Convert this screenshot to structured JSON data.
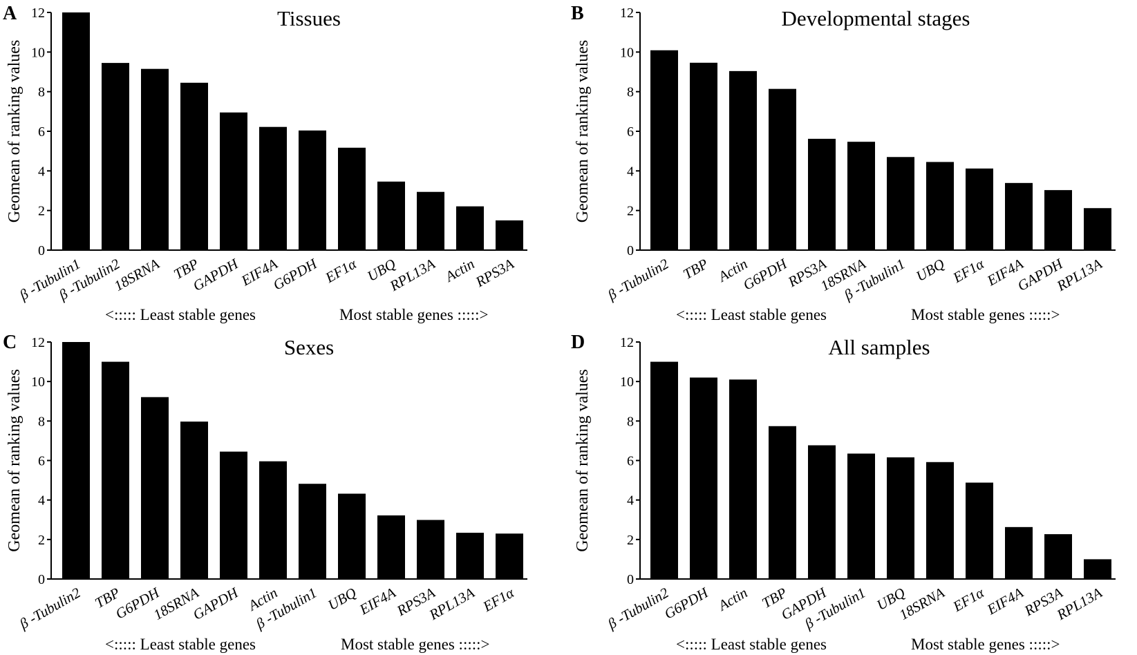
{
  "chart_data": [
    {
      "letter": "A",
      "type": "bar",
      "title": "Tissues",
      "ylabel": "Geomean of ranking values",
      "xlabel_left": "<::::: Least stable genes",
      "xlabel_right": "Most stable genes :::::>",
      "ylim": [
        0,
        12
      ],
      "yticks": [
        "0",
        "2",
        "4",
        "6",
        "8",
        "10",
        "12"
      ],
      "categories": [
        "β -Tubulin1",
        "β -Tubulin2",
        "18SRNA",
        "TBP",
        "GAPDH",
        "EIF4A",
        "G6PDH",
        "EF1α",
        "UBQ",
        "RPL13A",
        "Actin",
        "RPS3A"
      ],
      "values": [
        12.0,
        9.45,
        9.15,
        8.45,
        6.95,
        6.22,
        6.04,
        5.17,
        3.46,
        2.94,
        2.21,
        1.5
      ]
    },
    {
      "letter": "B",
      "type": "bar",
      "title": "Developmental stages",
      "ylabel": "Geomean of ranking values",
      "xlabel_left": "<::::: Least stable genes",
      "xlabel_right": "Most stable genes :::::>",
      "ylim": [
        0,
        12
      ],
      "yticks": [
        "0",
        "2",
        "4",
        "6",
        "8",
        "10",
        "12"
      ],
      "categories": [
        "β -Tubulin2",
        "TBP",
        "Actin",
        "G6PDH",
        "RPS3A",
        "18SRNA",
        "β -Tubulin1",
        "UBQ",
        "EF1α",
        "EIF4A",
        "GAPDH",
        "RPL13A"
      ],
      "values": [
        10.09,
        9.46,
        9.04,
        8.14,
        5.62,
        5.47,
        4.7,
        4.45,
        4.12,
        3.39,
        3.03,
        2.12
      ]
    },
    {
      "letter": "C",
      "type": "bar",
      "title": "Sexes",
      "ylabel": "Geomean of ranking values",
      "xlabel_left": "<::::: Least stable genes",
      "xlabel_right": "Most stable genes :::::>",
      "ylim": [
        0,
        12
      ],
      "yticks": [
        "0",
        "2",
        "4",
        "6",
        "8",
        "10",
        "12"
      ],
      "categories": [
        "β -Tubulin2",
        "TBP",
        "G6PDH",
        "18SRNA",
        "GAPDH",
        "Actin",
        "β -Tubulin1",
        "UBQ",
        "EIF4A",
        "RPS3A",
        "RPL13A",
        "EF1α"
      ],
      "values": [
        12.0,
        11.0,
        9.21,
        7.97,
        6.45,
        5.96,
        4.82,
        4.32,
        3.22,
        2.99,
        2.34,
        2.3
      ]
    },
    {
      "letter": "D",
      "type": "bar",
      "title": "All samples",
      "ylabel": "Geomean of ranking values",
      "xlabel_left": "<::::: Least stable genes",
      "xlabel_right": "Most stable genes :::::>",
      "ylim": [
        0,
        12
      ],
      "yticks": [
        "0",
        "2",
        "4",
        "6",
        "8",
        "10",
        "12"
      ],
      "categories": [
        "β -Tubulin2",
        "G6PDH",
        "Actin",
        "TBP",
        "GAPDH",
        "β -Tubulin1",
        "UBQ",
        "18SRNA",
        "EF1α",
        "EIF4A",
        "RPS3A",
        "RPL13A"
      ],
      "values": [
        11.0,
        10.2,
        10.1,
        7.74,
        6.77,
        6.35,
        6.16,
        5.92,
        4.88,
        2.63,
        2.27,
        1.0
      ]
    }
  ],
  "colors": {
    "bar": "#000000",
    "axis": "#000000",
    "background": "#ffffff"
  }
}
